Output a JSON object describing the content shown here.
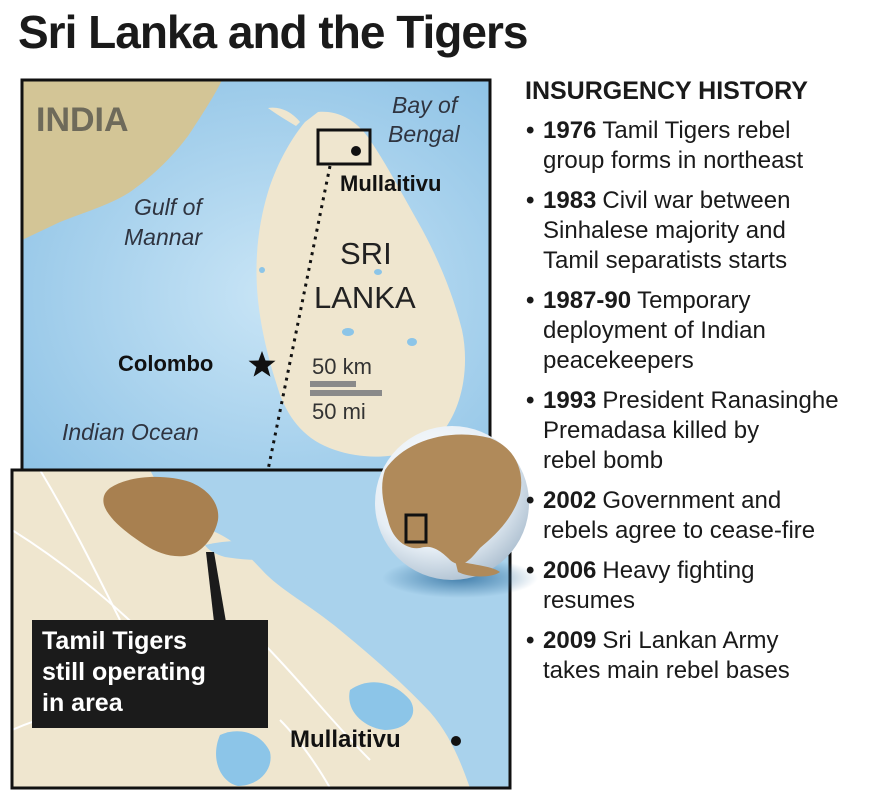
{
  "title": "Sri Lanka and the Tigers",
  "map": {
    "labels": {
      "india": "INDIA",
      "bay_of_bengal_1": "Bay of",
      "bay_of_bengal_2": "Bengal",
      "gulf_of_mannar_1": "Gulf of",
      "gulf_of_mannar_2": "Mannar",
      "sri_lanka_1": "SRI",
      "sri_lanka_2": "LANKA",
      "mullaitivu": "Mullaitivu",
      "colombo": "Colombo",
      "indian_ocean": "Indian Ocean",
      "scale_km": "50 km",
      "scale_mi": "50 mi"
    },
    "inset": {
      "callout_lines": [
        "Tamil Tigers",
        "still operating",
        "in area"
      ],
      "mullaitivu": "Mullaitivu"
    },
    "colors": {
      "ocean": "#a9d2ec",
      "land": "#efe6cf",
      "india_land": "#d3c596",
      "rebel_area": "#a88050",
      "water_body": "#8cc5e8"
    },
    "icons": [
      "star-icon",
      "city-dot-icon",
      "globe-icon"
    ]
  },
  "history": {
    "header": "INSURGENCY HISTORY",
    "events": [
      {
        "year": "1976",
        "lines": [
          "Tamil Tigers rebel",
          "group forms in northeast"
        ]
      },
      {
        "year": "1983",
        "lines": [
          "Civil war between",
          "Sinhalese majority and",
          "Tamil separatists starts"
        ]
      },
      {
        "year": "1987-90",
        "lines": [
          "Temporary",
          "deployment of Indian",
          "peacekeepers"
        ]
      },
      {
        "year": "1993",
        "lines": [
          "President Ranasinghe",
          "Premadasa killed by",
          "rebel bomb"
        ]
      },
      {
        "year": "2002",
        "lines": [
          "Government and",
          "rebels agree to cease-fire"
        ]
      },
      {
        "year": "2006",
        "lines": [
          "Heavy fighting",
          "resumes"
        ]
      },
      {
        "year": "2009",
        "lines": [
          "Sri Lankan Army",
          "takes main rebel bases"
        ]
      }
    ]
  }
}
